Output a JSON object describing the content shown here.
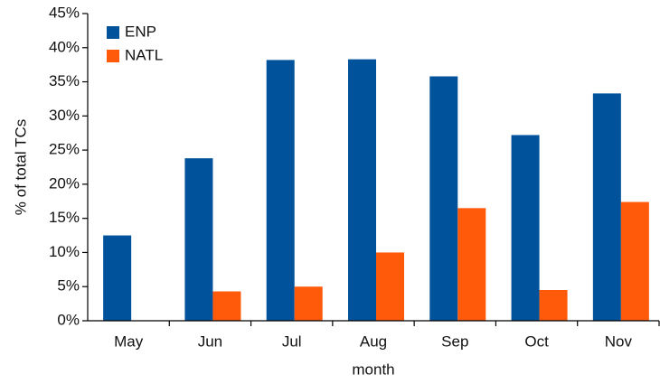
{
  "chart_data": {
    "type": "bar",
    "categories": [
      "May",
      "Jun",
      "Jul",
      "Aug",
      "Sep",
      "Oct",
      "Nov"
    ],
    "series": [
      {
        "name": "ENP",
        "color": "#00529b",
        "values": [
          12.5,
          23.8,
          38.2,
          38.3,
          35.8,
          27.2,
          33.3
        ]
      },
      {
        "name": "NATL",
        "color": "#ff5a0a",
        "values": [
          0,
          4.3,
          5.0,
          10.0,
          16.5,
          4.5,
          17.4
        ]
      }
    ],
    "ylabel": "% of total TCs",
    "xlabel": "month",
    "ylim": [
      0,
      45
    ],
    "yticks": [
      {
        "value": 0,
        "label": "0%"
      },
      {
        "value": 5,
        "label": "5%"
      },
      {
        "value": 10,
        "label": "10%"
      },
      {
        "value": 15,
        "label": "15%"
      },
      {
        "value": 20,
        "label": "20%"
      },
      {
        "value": 25,
        "label": "25%"
      },
      {
        "value": 30,
        "label": "30%"
      },
      {
        "value": 35,
        "label": "35%"
      },
      {
        "value": 40,
        "label": "40%"
      },
      {
        "value": 45,
        "label": "45%"
      }
    ],
    "legend": "upper left",
    "grid": false
  }
}
